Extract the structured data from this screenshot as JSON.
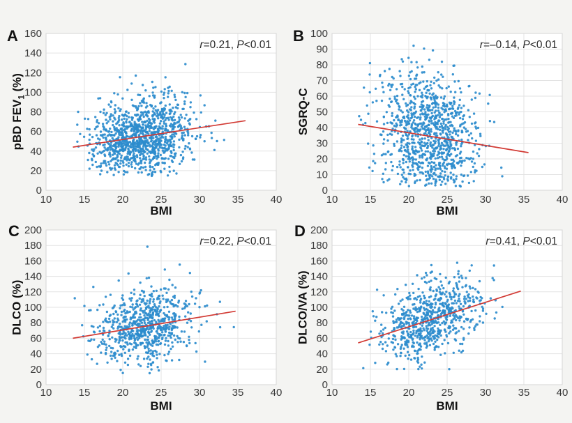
{
  "colors": {
    "background": "#f4f4f2",
    "plot_bg": "#ffffff",
    "grid": "#e3e3e3",
    "plot_border": "#d6d6d6",
    "point": "#2d8ccd",
    "trend": "#d23a34",
    "tick_text": "#3a3a3a",
    "label_text": "#111111",
    "annotation_text": "#2b2b2b"
  },
  "chart_data": [
    {
      "panel_label": "A",
      "type": "scatter",
      "title": "",
      "xlabel": "BMI",
      "ylabel": {
        "main": "pBD FEV",
        "sub": "1",
        "suffix": " (%)"
      },
      "annotation": {
        "r_label": "r",
        "r_value": "=0.21, ",
        "p_label": "P",
        "p_value": "<0.01"
      },
      "xlim": [
        10,
        40
      ],
      "xtick_step": 5,
      "ylim": [
        0,
        160
      ],
      "ytick_step": 20,
      "grid": true,
      "legend": "none",
      "trend_line": {
        "x1": 13.5,
        "y1": 44,
        "x2": 36,
        "y2": 71
      },
      "points": {
        "n": 1150,
        "seed": 7,
        "x_mean": 22.4,
        "x_sd": 3.2,
        "x_range": [
          13.8,
          36
        ],
        "y_mean": 55,
        "y_sd": 20,
        "y_range": [
          14,
          138
        ],
        "r": 0.21
      }
    },
    {
      "panel_label": "B",
      "type": "scatter",
      "title": "",
      "xlabel": "BMI",
      "ylabel": {
        "main": "SGRQ-C",
        "sub": "",
        "suffix": ""
      },
      "annotation": {
        "r_label": "r",
        "r_value": "=–0.14, ",
        "p_label": "P",
        "p_value": "<0.01"
      },
      "xlim": [
        10,
        40
      ],
      "xtick_step": 5,
      "ylim": [
        0,
        100
      ],
      "ytick_step": 10,
      "grid": true,
      "legend": "none",
      "trend_line": {
        "x1": 13.4,
        "y1": 42,
        "x2": 35.6,
        "y2": 24
      },
      "points": {
        "n": 1000,
        "seed": 13,
        "x_mean": 22.6,
        "x_sd": 3.3,
        "x_range": [
          13.5,
          36
        ],
        "y_mean": 34,
        "y_sd": 21,
        "y_range": [
          2,
          94
        ],
        "r": -0.14
      }
    },
    {
      "panel_label": "C",
      "type": "scatter",
      "title": "",
      "xlabel": "BMI",
      "ylabel": {
        "main": "DLCO (%)",
        "sub": "",
        "suffix": ""
      },
      "annotation": {
        "r_label": "r",
        "r_value": "=0.22, ",
        "p_label": "P",
        "p_value": "<0.01"
      },
      "xlim": [
        10,
        40
      ],
      "xtick_step": 5,
      "ylim": [
        0,
        200
      ],
      "ytick_step": 20,
      "grid": true,
      "legend": "none",
      "trend_line": {
        "x1": 13.5,
        "y1": 60,
        "x2": 34.7,
        "y2": 95
      },
      "points": {
        "n": 740,
        "seed": 21,
        "x_mean": 22.8,
        "x_sd": 3.2,
        "x_range": [
          13.4,
          34.8
        ],
        "y_mean": 76,
        "y_sd": 25,
        "y_range": [
          14,
          199
        ],
        "r": 0.22
      }
    },
    {
      "panel_label": "D",
      "type": "scatter",
      "title": "",
      "xlabel": "BMI",
      "ylabel": {
        "main": "DLCO/VA (%)",
        "sub": "",
        "suffix": ""
      },
      "annotation": {
        "r_label": "r",
        "r_value": "=0.41, ",
        "p_label": "P",
        "p_value": "<0.01"
      },
      "xlim": [
        10,
        40
      ],
      "xtick_step": 5,
      "ylim": [
        0,
        200
      ],
      "ytick_step": 20,
      "grid": true,
      "legend": "none",
      "trend_line": {
        "x1": 13.4,
        "y1": 54,
        "x2": 34.6,
        "y2": 121
      },
      "points": {
        "n": 740,
        "seed": 29,
        "x_mean": 22.8,
        "x_sd": 3.2,
        "x_range": [
          13.4,
          34.8
        ],
        "y_mean": 85,
        "y_sd": 26,
        "y_range": [
          20,
          199
        ],
        "r": 0.41
      }
    }
  ]
}
